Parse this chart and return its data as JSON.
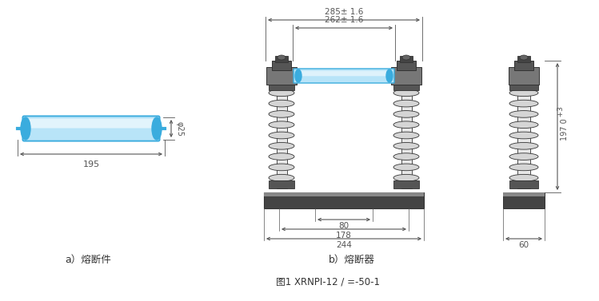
{
  "bg_color": "#ffffff",
  "line_color": "#333333",
  "dim_color": "#555555",
  "blue_dark": "#3aacde",
  "blue_light": "#b8e4f8",
  "blue_mid": "#70ccf0",
  "gray_dark": "#555555",
  "gray_mid": "#999999",
  "gray_light": "#d8d8d8",
  "dark_fill": "#3a3a3a",
  "label_a": "a）熔断件",
  "label_b": "b）熔断器",
  "fig_caption": "图1 XRNPI-12 / =-50-1",
  "dim_195": "195",
  "dim_phi25": "φ25",
  "dim_285": "285± 1.6",
  "dim_262": "262± 1.6",
  "dim_80": "80",
  "dim_178": "178",
  "dim_244": "244",
  "dim_197a": "197 0",
  "dim_197b": "   +3",
  "dim_60": "60"
}
